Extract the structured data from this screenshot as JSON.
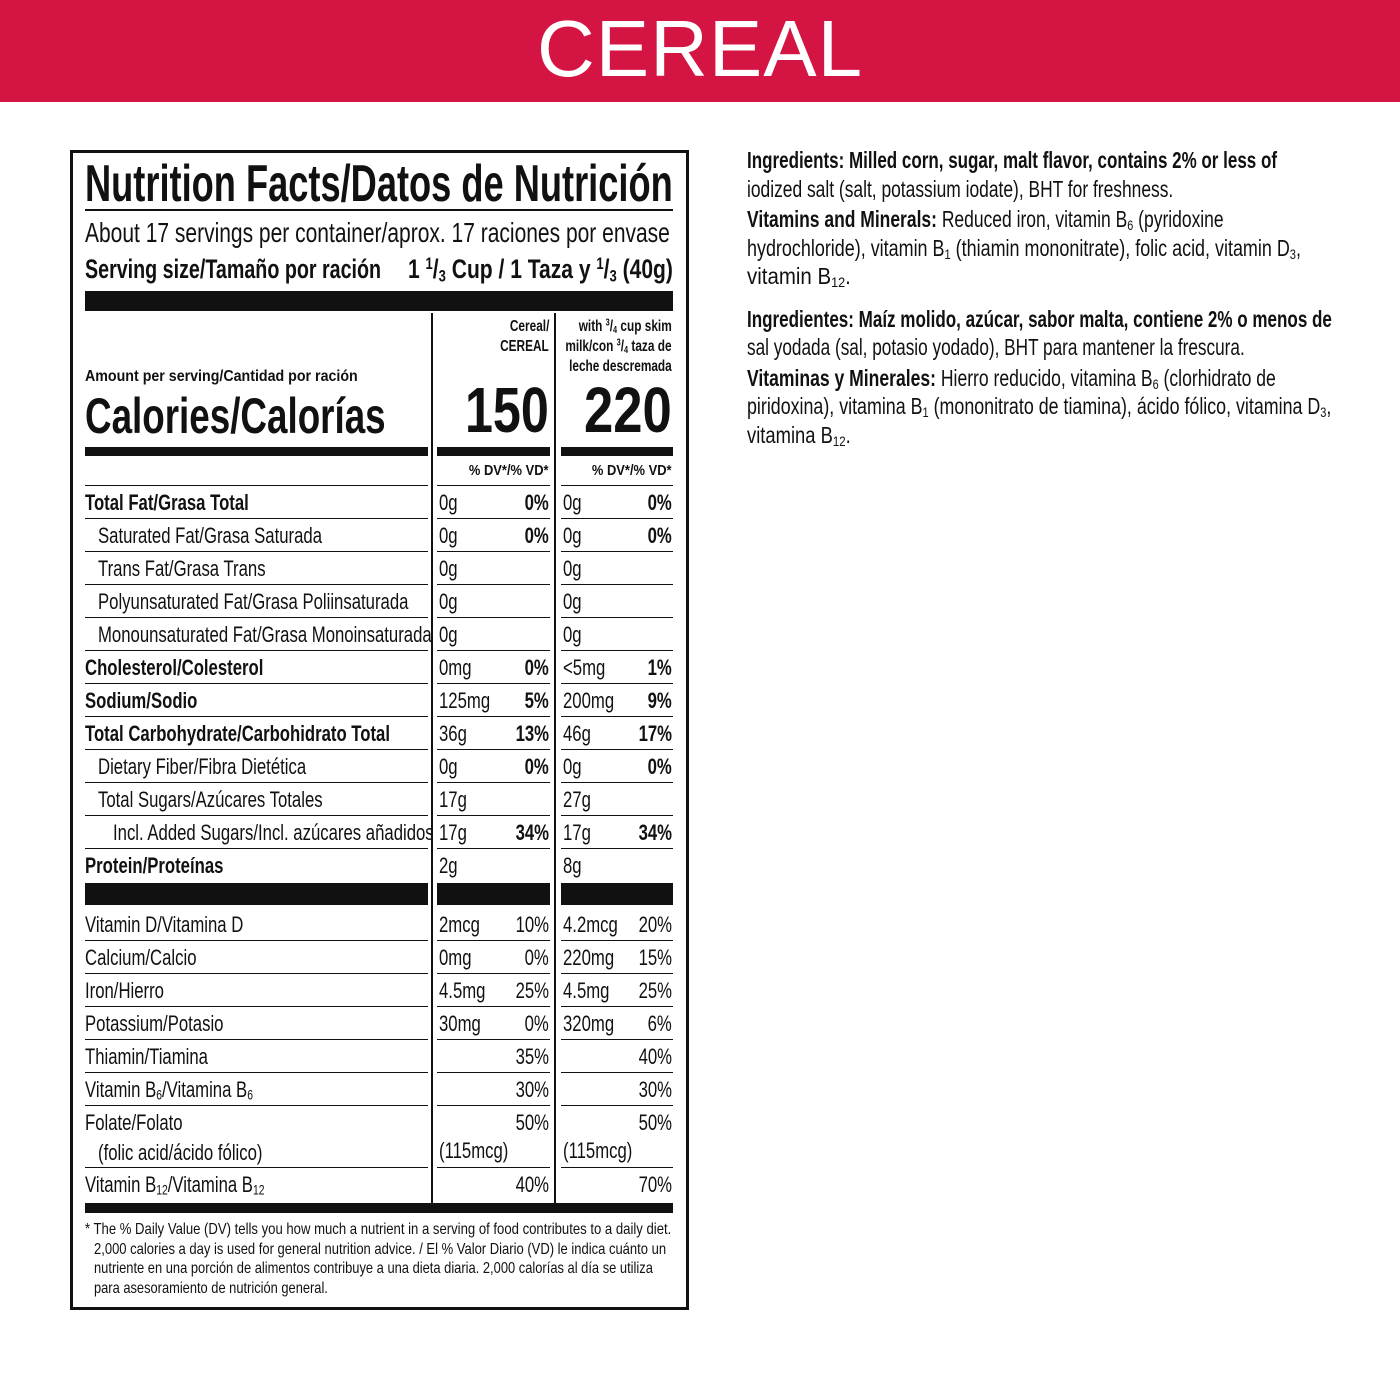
{
  "header": {
    "title": "CEREAL",
    "color": "#d41442"
  },
  "label": {
    "title": "Nutrition Facts/Datos de Nutrición",
    "servings": "About 17 servings per container/aprox. 17 raciones por envase",
    "serving_size_label": "Serving size/Tamaño por ración",
    "serving_size_value": [
      "1 ",
      {
        "sup": "1"
      },
      "/",
      {
        "sub": "3"
      },
      " Cup / 1 Taza y ",
      {
        "sup": "1"
      },
      "/",
      {
        "sub": "3"
      },
      " (40g)"
    ],
    "amount_per_serving": "Amount per serving/Cantidad por ración",
    "calories_label": "Calories/Calorías",
    "columns": [
      {
        "header": [
          [
            "Cereal/"
          ],
          [
            "CEREAL"
          ]
        ],
        "calories": "150",
        "dv_header": "% DV*/% VD*"
      },
      {
        "header": [
          [
            "with ",
            {
              "sup": "3"
            },
            "/",
            {
              "sub": "4"
            },
            " cup skim"
          ],
          [
            "milk/con ",
            {
              "sup": "3"
            },
            "/",
            {
              "sub": "4"
            },
            " taza de"
          ],
          [
            "leche descremada"
          ]
        ],
        "calories": "220",
        "dv_header": "% DV*/% VD*"
      }
    ],
    "nutrients": [
      {
        "label": "Total Fat/Grasa Total",
        "indent": 0,
        "bold": true,
        "c1": [
          "0g",
          "0%"
        ],
        "c2": [
          "0g",
          "0%"
        ]
      },
      {
        "label": "Saturated Fat/Grasa Saturada",
        "indent": 1,
        "bold": false,
        "c1": [
          "0g",
          "0%"
        ],
        "c2": [
          "0g",
          "0%"
        ]
      },
      {
        "label": "Trans Fat/Grasa Trans",
        "indent": 1,
        "bold": false,
        "c1": [
          "0g",
          ""
        ],
        "c2": [
          "0g",
          ""
        ]
      },
      {
        "label": "Polyunsaturated Fat/Grasa Poliinsaturada",
        "indent": 1,
        "bold": false,
        "c1": [
          "0g",
          ""
        ],
        "c2": [
          "0g",
          ""
        ]
      },
      {
        "label": "Monounsaturated Fat/Grasa Monoinsaturada",
        "indent": 1,
        "bold": false,
        "c1": [
          "0g",
          ""
        ],
        "c2": [
          "0g",
          ""
        ]
      },
      {
        "label": "Cholesterol/Colesterol",
        "indent": 0,
        "bold": true,
        "c1": [
          "0mg",
          "0%"
        ],
        "c2": [
          "<5mg",
          "1%"
        ]
      },
      {
        "label": "Sodium/Sodio",
        "indent": 0,
        "bold": true,
        "c1": [
          "125mg",
          "5%"
        ],
        "c2": [
          "200mg",
          "9%"
        ]
      },
      {
        "label": "Total Carbohydrate/Carbohidrato Total",
        "indent": 0,
        "bold": true,
        "c1": [
          "36g",
          "13%"
        ],
        "c2": [
          "46g",
          "17%"
        ]
      },
      {
        "label": "Dietary Fiber/Fibra Dietética",
        "indent": 1,
        "bold": false,
        "c1": [
          "0g",
          "0%"
        ],
        "c2": [
          "0g",
          "0%"
        ]
      },
      {
        "label": "Total Sugars/Azúcares Totales",
        "indent": 1,
        "bold": false,
        "c1": [
          "17g",
          ""
        ],
        "c2": [
          "27g",
          ""
        ]
      },
      {
        "label": "Incl. Added Sugars/Incl. azúcares añadidos",
        "indent": 2,
        "bold": false,
        "c1": [
          "17g",
          "34%"
        ],
        "c2": [
          "17g",
          "34%"
        ]
      },
      {
        "label": "Protein/Proteínas",
        "indent": 0,
        "bold": true,
        "c1": [
          "2g",
          ""
        ],
        "c2": [
          "8g",
          ""
        ]
      }
    ],
    "vitamins": [
      {
        "label": "Vitamin D/Vitamina D",
        "c1": [
          "2mcg",
          "10%"
        ],
        "c2": [
          "4.2mcg",
          "20%"
        ]
      },
      {
        "label": "Calcium/Calcio",
        "c1": [
          "0mg",
          "0%"
        ],
        "c2": [
          "220mg",
          "15%"
        ]
      },
      {
        "label": "Iron/Hierro",
        "c1": [
          "4.5mg",
          "25%"
        ],
        "c2": [
          "4.5mg",
          "25%"
        ]
      },
      {
        "label": "Potassium/Potasio",
        "c1": [
          "30mg",
          "0%"
        ],
        "c2": [
          "320mg",
          "6%"
        ]
      },
      {
        "label": "Thiamin/Tiamina",
        "c1": [
          "",
          "35%"
        ],
        "c2": [
          "",
          "40%"
        ]
      },
      {
        "label": [
          "Vitamin B",
          {
            "sub": "6"
          },
          "/Vitamina B",
          {
            "sub": "6"
          }
        ],
        "c1": [
          "",
          "30%"
        ],
        "c2": [
          "",
          "30%"
        ]
      },
      {
        "label": "Folate/Folato",
        "sublabel": "(folic acid/ácido fólico)",
        "c1": [
          "(115mcg)",
          "50%"
        ],
        "c2": [
          "(115mcg)",
          "50%"
        ]
      },
      {
        "label": [
          "Vitamin B",
          {
            "sub": "12"
          },
          "/Vitamina B",
          {
            "sub": "12"
          }
        ],
        "c1": [
          "",
          "40%"
        ],
        "c2": [
          "",
          "70%"
        ]
      }
    ],
    "footnote": [
      "* The % Daily Value (DV) tells you how much a nutrient in a serving of food contributes to a daily diet.",
      "2,000 calories a day is used for general nutrition advice. / El % Valor Diario (VD) le indica cuánto un",
      "nutriente en una porción de alimentos contribuye a una dieta diaria. 2,000 calorías al día se utiliza",
      "para asesoramiento de nutrición general."
    ]
  },
  "ingredients": [
    {
      "lines": [
        [
          {
            "b": "Ingredients: Milled corn, sugar, malt flavor, contains 2% or less of"
          }
        ],
        [
          "iodized salt (salt, potassium iodate), BHT for freshness."
        ]
      ]
    },
    {
      "lines": [
        [
          {
            "b": "Vitamins and Minerals: "
          },
          "Reduced iron, vitamin B",
          {
            "sub": "6"
          },
          " (pyridoxine"
        ],
        [
          "hydrochloride), vitamin B",
          {
            "sub": "1"
          },
          " (thiamin mononitrate), folic acid, vitamin D",
          {
            "sub": "3"
          },
          ","
        ],
        [
          "vitamin B",
          {
            "sub": "12"
          },
          "."
        ]
      ]
    },
    {
      "lines": [
        [
          {
            "b": "Ingredientes: Maíz molido, azúcar, sabor malta, contiene 2% o menos de"
          }
        ],
        [
          "sal yodada (sal, potasio yodado), BHT para mantener la frescura."
        ]
      ]
    },
    {
      "lines": [
        [
          {
            "b": "Vitaminas y Minerales: "
          },
          "Hierro reducido, vitamina B",
          {
            "sub": "6"
          },
          " (clorhidrato de"
        ],
        [
          "piridoxina), vitamina B",
          {
            "sub": "1"
          },
          " (mononitrato de tiamina), ácido fólico, vitamina D",
          {
            "sub": "3"
          },
          ","
        ],
        [
          "vitamina B",
          {
            "sub": "12"
          },
          "."
        ]
      ]
    }
  ]
}
